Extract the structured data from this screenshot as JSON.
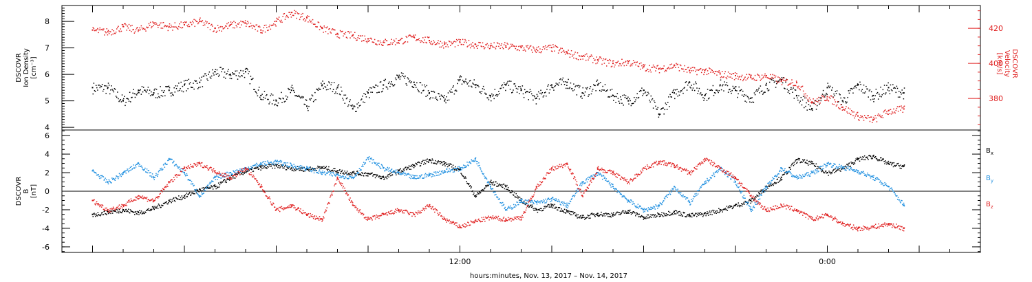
{
  "chart_data": [
    {
      "type": "scatter",
      "panel": "plasma",
      "ylabel_left": [
        "DSCOVR",
        "Ion Density",
        "[cm⁻³]"
      ],
      "ylabel_right": [
        "DSCOVR",
        "Velocity",
        "[km/s]"
      ],
      "ylim_left": [
        3.9,
        8.6
      ],
      "ylim_right": [
        362,
        433
      ],
      "yticks_left": [
        "4",
        "5",
        "6",
        "7",
        "8"
      ],
      "yticks_right": [
        "380",
        "400",
        "420"
      ],
      "xlim_hours": [
        -1,
        29
      ],
      "series": [
        {
          "axis": "left",
          "color": "#000000",
          "x": [
            0,
            0.5,
            1,
            1.5,
            2,
            2.5,
            3,
            3.5,
            4,
            4.5,
            5,
            5.5,
            6,
            6.5,
            7,
            7.5,
            8,
            8.5,
            9,
            9.5,
            10,
            10.5,
            11,
            11.5,
            12,
            12.5,
            13,
            13.5,
            14,
            14.5,
            15,
            15.5,
            16,
            16.5,
            17,
            17.5,
            18,
            18.5,
            19,
            19.5,
            20,
            20.5,
            21,
            21.5,
            22,
            22.5,
            23,
            23.5,
            24,
            24.5,
            25,
            25.5,
            26,
            26.5
          ],
          "y": [
            5.5,
            5.5,
            5.0,
            5.4,
            5.3,
            5.4,
            5.6,
            5.7,
            6.1,
            6.0,
            6.1,
            5.2,
            5.0,
            5.4,
            4.8,
            5.6,
            5.5,
            4.7,
            5.3,
            5.6,
            5.9,
            5.7,
            5.3,
            5.0,
            5.8,
            5.6,
            5.2,
            5.6,
            5.4,
            5.1,
            5.6,
            5.7,
            5.3,
            5.6,
            5.2,
            5.0,
            5.4,
            4.5,
            5.3,
            5.7,
            5.2,
            5.6,
            5.4,
            5.1,
            5.6,
            5.8,
            5.2,
            4.7,
            5.5,
            5.0,
            5.6,
            5.2,
            5.5,
            5.3
          ]
        },
        {
          "axis": "right",
          "color": "#e02020",
          "x": [
            0,
            0.5,
            1,
            1.5,
            2,
            2.5,
            3,
            3.5,
            4,
            4.5,
            5,
            5.5,
            6,
            6.5,
            7,
            7.5,
            8,
            8.5,
            9,
            9.5,
            10,
            10.5,
            11,
            11.5,
            12,
            12.5,
            13,
            13.5,
            14,
            14.5,
            15,
            15.5,
            16,
            16.5,
            17,
            17.5,
            18,
            18.5,
            19,
            19.5,
            20,
            20.5,
            21,
            21.5,
            22,
            22.5,
            23,
            23.5,
            24,
            24.5,
            25,
            25.5,
            26,
            26.5
          ],
          "y": [
            419,
            418,
            421,
            419,
            423,
            421,
            422,
            424,
            420,
            422,
            423,
            419,
            424,
            429,
            426,
            420,
            417,
            416,
            414,
            412,
            413,
            415,
            413,
            411,
            412,
            411,
            410,
            410,
            409,
            408,
            409,
            406,
            404,
            402,
            400,
            401,
            398,
            397,
            399,
            396,
            396,
            394,
            393,
            392,
            393,
            390,
            389,
            378,
            381,
            375,
            370,
            368,
            373,
            374
          ]
        }
      ]
    },
    {
      "type": "scatter",
      "panel": "magnetic-field",
      "ylabel": [
        "DSCOVR",
        "B",
        "[nT]"
      ],
      "ylim": [
        -6.6,
        6.6
      ],
      "yticks": [
        "6",
        "4",
        "2",
        "0",
        "-2",
        "-4",
        "-6"
      ],
      "xlim_hours": [
        -1,
        29
      ],
      "xticks": [
        "12:00",
        "0:00"
      ],
      "xlabel": "hours:minutes, Nov. 13, 2017 – Nov. 14, 2017",
      "legend": [
        "Bx",
        "By",
        "Bz"
      ],
      "legend_placement": "right",
      "series": [
        {
          "name": "Bx",
          "color": "#000000",
          "x": [
            0,
            0.5,
            1,
            1.5,
            2,
            2.5,
            3,
            3.5,
            4,
            4.5,
            5,
            5.5,
            6,
            6.5,
            7,
            7.5,
            8,
            8.5,
            9,
            9.5,
            10,
            10.5,
            11,
            11.5,
            12,
            12.5,
            13,
            13.5,
            14,
            14.5,
            15,
            15.5,
            16,
            16.5,
            17,
            17.5,
            18,
            18.5,
            19,
            19.5,
            20,
            20.5,
            21,
            21.5,
            22,
            22.5,
            23,
            23.5,
            24,
            24.5,
            25,
            25.5,
            26,
            26.5
          ],
          "y": [
            -2.5,
            -2.2,
            -2.0,
            -2.3,
            -1.8,
            -1.0,
            -0.5,
            0.2,
            0.5,
            1.5,
            2.2,
            2.6,
            2.8,
            2.5,
            2.4,
            2.6,
            2.2,
            2.0,
            1.9,
            1.5,
            2.2,
            2.8,
            3.4,
            3.0,
            2.3,
            -0.5,
            1.0,
            0.5,
            -1.0,
            -2.0,
            -1.5,
            -2.2,
            -2.8,
            -2.4,
            -2.5,
            -2.1,
            -2.8,
            -2.5,
            -2.2,
            -2.6,
            -2.4,
            -2.0,
            -1.5,
            -1.0,
            0.5,
            1.5,
            3.4,
            3.0,
            2.0,
            2.5,
            3.5,
            3.8,
            3.0,
            2.7
          ]
        },
        {
          "name": "By",
          "color": "#1e8fe0",
          "x": [
            0,
            0.5,
            1,
            1.5,
            2,
            2.5,
            3,
            3.5,
            4,
            4.5,
            5,
            5.5,
            6,
            6.5,
            7,
            7.5,
            8,
            8.5,
            9,
            9.5,
            10,
            10.5,
            11,
            11.5,
            12,
            12.5,
            13,
            13.5,
            14,
            14.5,
            15,
            15.5,
            16,
            16.5,
            17,
            17.5,
            18,
            18.5,
            19,
            19.5,
            20,
            20.5,
            21,
            21.5,
            22,
            22.5,
            23,
            23.5,
            24,
            24.5,
            25,
            25.5,
            26,
            26.5
          ],
          "y": [
            2.2,
            1.0,
            2.0,
            3.0,
            1.5,
            3.5,
            2.0,
            -0.5,
            1.5,
            2.0,
            2.5,
            3.0,
            3.2,
            2.8,
            2.5,
            2.0,
            1.8,
            1.5,
            3.6,
            2.5,
            2.0,
            1.5,
            1.8,
            2.2,
            2.5,
            3.5,
            0.5,
            -2.0,
            -1.0,
            -1.2,
            -0.8,
            -1.5,
            1.0,
            2.0,
            0.5,
            -1.0,
            -2.0,
            -1.5,
            0.5,
            -1.2,
            1.0,
            2.5,
            1.0,
            -2.0,
            0.5,
            2.5,
            1.5,
            2.0,
            3.0,
            2.6,
            2.2,
            1.5,
            0.5,
            -1.5
          ]
        },
        {
          "name": "Bz",
          "color": "#e02020",
          "x": [
            0,
            0.5,
            1,
            1.5,
            2,
            2.5,
            3,
            3.5,
            4,
            4.5,
            5,
            5.5,
            6,
            6.5,
            7,
            7.5,
            8,
            8.5,
            9,
            9.5,
            10,
            10.5,
            11,
            11.5,
            12,
            12.5,
            13,
            13.5,
            14,
            14.5,
            15,
            15.5,
            16,
            16.5,
            17,
            17.5,
            18,
            18.5,
            19,
            19.5,
            20,
            20.5,
            21,
            21.5,
            22,
            22.5,
            23,
            23.5,
            24,
            24.5,
            25,
            25.5,
            26,
            26.5
          ],
          "y": [
            -1.0,
            -2.0,
            -1.5,
            -0.5,
            -1.0,
            1.0,
            2.5,
            3.0,
            2.2,
            1.5,
            2.5,
            0.5,
            -2.0,
            -1.5,
            -2.5,
            -3.0,
            1.5,
            -1.5,
            -3.0,
            -2.5,
            -2.0,
            -2.5,
            -1.5,
            -3.0,
            -3.8,
            -3.2,
            -2.8,
            -3.0,
            -2.8,
            0.5,
            2.5,
            3.0,
            -0.5,
            2.5,
            2.0,
            1.0,
            2.5,
            3.2,
            2.8,
            2.0,
            3.5,
            2.5,
            1.5,
            -0.5,
            -2.0,
            -1.5,
            -2.0,
            -3.0,
            -2.5,
            -3.5,
            -4.0,
            -3.8,
            -3.5,
            -4.0
          ]
        }
      ]
    }
  ]
}
